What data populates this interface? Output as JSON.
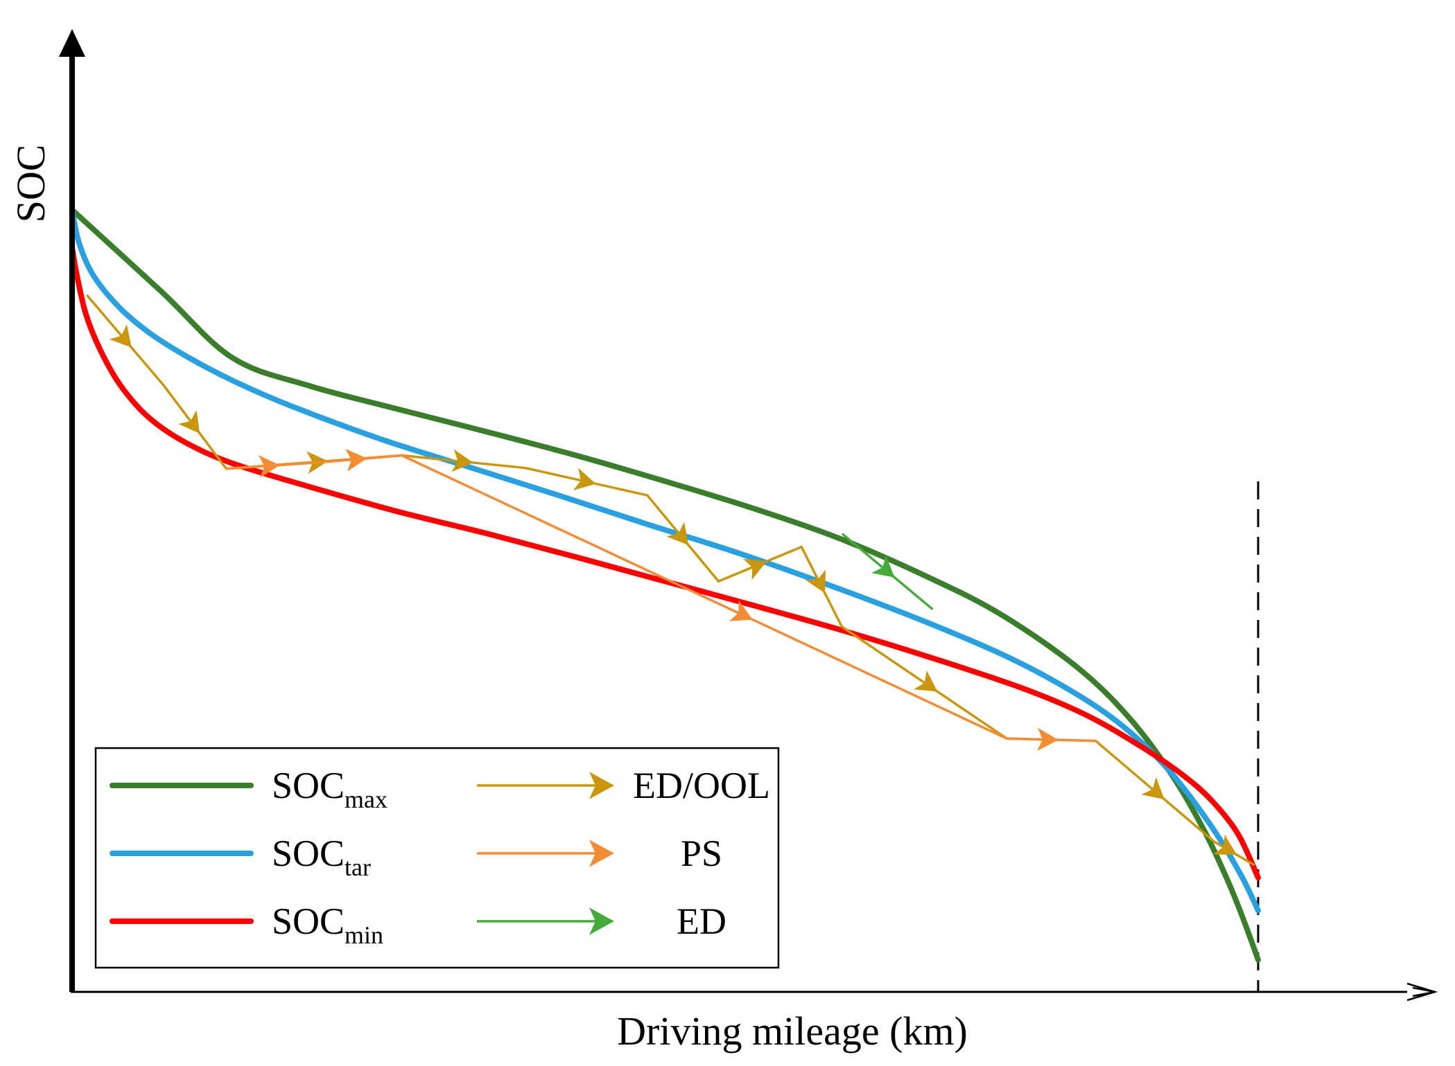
{
  "chart_data": {
    "type": "line",
    "title": "",
    "xlabel": "Driving mileage (km)",
    "ylabel": "SOC",
    "xlim": [
      0,
      100
    ],
    "ylim": [
      0,
      100
    ],
    "ticks_shown": false,
    "grid": false,
    "series": [
      {
        "name": "SOC_max",
        "base": "SOC",
        "sub": "max",
        "color": "#3a7d2a",
        "style": "thick",
        "x": [
          0,
          7.5,
          13.5,
          20,
          27.5,
          35,
          42.5,
          50,
          57.5,
          65,
          72.5,
          78.5,
          85,
          89.5,
          93,
          95.5,
          97.3,
          98.5,
          99.6,
          100
        ],
        "y": [
          100,
          89.6,
          81.1,
          77.5,
          74.5,
          71.6,
          68.6,
          65.3,
          61.8,
          57.8,
          52.8,
          48.1,
          41.2,
          34.4,
          27.1,
          20.5,
          14.7,
          10.3,
          5.8,
          4.1
        ]
      },
      {
        "name": "SOC_tar",
        "base": "SOC",
        "sub": "tar",
        "color": "#29a0e0",
        "style": "thick",
        "x": [
          0,
          0.6,
          1.8,
          4,
          6.5,
          9.5,
          13.5,
          18.5,
          26,
          33.5,
          41,
          48.5,
          56,
          63.5,
          71,
          78.5,
          84,
          88.5,
          92.5,
          96,
          98.5,
          100
        ],
        "y": [
          100,
          95.7,
          91.6,
          87.5,
          84.3,
          81.4,
          78.2,
          74.9,
          70.7,
          67.1,
          63.5,
          59.8,
          56.2,
          52.2,
          47.9,
          43.1,
          38.7,
          34.1,
          28.3,
          21.3,
          15.1,
          10.4
        ]
      },
      {
        "name": "SOC_min",
        "base": "SOC",
        "sub": "min",
        "color": "#ff0000",
        "style": "thick",
        "x": [
          0,
          0.4,
          1.2,
          2.5,
          4.2,
          6.5,
          9.5,
          13.5,
          20,
          27.5,
          35,
          42.5,
          50,
          57.5,
          65,
          72.5,
          80,
          85.5,
          90,
          93.5,
          96,
          98.3,
          100
        ],
        "y": [
          95.2,
          91.7,
          86.5,
          81.7,
          77.3,
          73.4,
          70.3,
          67.6,
          64.6,
          61.4,
          58.6,
          55.6,
          52.5,
          49.4,
          46.2,
          42.7,
          38.9,
          35.4,
          31.5,
          27.9,
          24.6,
          20.2,
          14.6
        ]
      },
      {
        "name": "ED/OOL",
        "color": "#c9960c",
        "style": "arrow-path",
        "x": [
          1.3,
          7.7,
          13.0,
          27.8,
          38.2,
          48.5,
          54.5,
          61.5,
          64.9,
          78.8,
          86.3,
          96.3,
          99.6
        ],
        "y": [
          89.0,
          77.6,
          66.9,
          68.6,
          67.0,
          63.5,
          52.5,
          56.9,
          46.7,
          32.4,
          32.1,
          19.2,
          16.3
        ]
      },
      {
        "name": "PS",
        "color": "#f58b33",
        "style": "arrow-path",
        "x": [
          13.0,
          20.8,
          27.8,
          78.8,
          86.3
        ],
        "y": [
          66.9,
          67.7,
          68.6,
          32.4,
          32.1
        ]
      },
      {
        "name": "ED",
        "color": "#44ab3b",
        "style": "arrow-path",
        "x": [
          65.0,
          72.5
        ],
        "y": [
          58.5,
          49.0
        ]
      }
    ],
    "annotations": [
      {
        "type": "vertical-dashed-line",
        "x": 100,
        "color": "#000000"
      }
    ],
    "legend": {
      "placement": "bottom-left",
      "entries": [
        {
          "series": "SOC_max",
          "base": "SOC",
          "sub": "max",
          "color": "#3a7d2a",
          "marker": "line"
        },
        {
          "series": "SOC_tar",
          "base": "SOC",
          "sub": "tar",
          "color": "#29a0e0",
          "marker": "line"
        },
        {
          "series": "SOC_min",
          "base": "SOC",
          "sub": "min",
          "color": "#ff0000",
          "marker": "line"
        },
        {
          "series": "ED/OOL",
          "label": "ED/OOL",
          "color": "#c9960c",
          "marker": "arrow"
        },
        {
          "series": "PS",
          "label": "PS",
          "color": "#f58b33",
          "marker": "arrow"
        },
        {
          "series": "ED",
          "label": "ED",
          "color": "#44ab3b",
          "marker": "arrow"
        }
      ]
    }
  }
}
